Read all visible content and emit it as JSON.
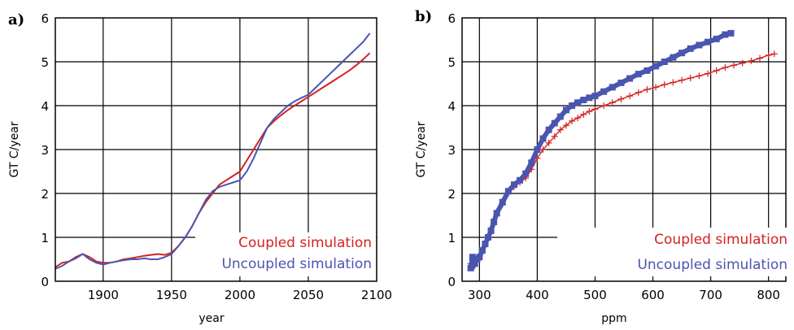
{
  "colors": {
    "coupled": "#d62020",
    "uncoupled": "#4a55b0",
    "axis": "#000000",
    "grid": "#000000"
  },
  "chart_data": [
    {
      "type": "line",
      "panel_label": "a)",
      "xlabel": "year",
      "ylabel": "GT C/year",
      "xlim": [
        1865,
        2100
      ],
      "ylim": [
        0,
        6
      ],
      "xticks": [
        "1900",
        "1950",
        "2000",
        "2050",
        "2100"
      ],
      "yticks": [
        "0",
        "1",
        "2",
        "3",
        "4",
        "5",
        "6"
      ],
      "grid": true,
      "legend_position": "bottom-right",
      "series": [
        {
          "name": "Coupled simulation",
          "color": "#d62020",
          "x": [
            1865,
            1870,
            1875,
            1880,
            1885,
            1890,
            1895,
            1900,
            1905,
            1910,
            1915,
            1920,
            1925,
            1930,
            1935,
            1940,
            1945,
            1950,
            1955,
            1960,
            1965,
            1970,
            1975,
            1980,
            1985,
            1990,
            1995,
            2000,
            2005,
            2010,
            2015,
            2020,
            2025,
            2030,
            2035,
            2040,
            2045,
            2050,
            2055,
            2060,
            2065,
            2070,
            2075,
            2080,
            2085,
            2090,
            2095
          ],
          "y": [
            0.32,
            0.42,
            0.45,
            0.55,
            0.62,
            0.55,
            0.45,
            0.42,
            0.42,
            0.45,
            0.5,
            0.52,
            0.55,
            0.58,
            0.6,
            0.62,
            0.6,
            0.65,
            0.8,
            1.0,
            1.25,
            1.55,
            1.8,
            2.0,
            2.2,
            2.3,
            2.4,
            2.5,
            2.75,
            3.0,
            3.25,
            3.5,
            3.65,
            3.78,
            3.9,
            4.0,
            4.1,
            4.2,
            4.3,
            4.4,
            4.5,
            4.6,
            4.7,
            4.8,
            4.92,
            5.05,
            5.2
          ]
        },
        {
          "name": "Uncoupled simulation",
          "color": "#4a55b0",
          "x": [
            1865,
            1870,
            1875,
            1880,
            1885,
            1890,
            1895,
            1900,
            1905,
            1910,
            1915,
            1920,
            1925,
            1930,
            1935,
            1940,
            1945,
            1950,
            1955,
            1960,
            1965,
            1970,
            1975,
            1980,
            1985,
            1990,
            1995,
            2000,
            2005,
            2010,
            2015,
            2020,
            2025,
            2030,
            2035,
            2040,
            2045,
            2050,
            2055,
            2060,
            2065,
            2070,
            2075,
            2080,
            2085,
            2090,
            2095
          ],
          "y": [
            0.28,
            0.35,
            0.45,
            0.52,
            0.62,
            0.5,
            0.42,
            0.38,
            0.42,
            0.45,
            0.48,
            0.5,
            0.5,
            0.52,
            0.5,
            0.5,
            0.55,
            0.62,
            0.8,
            1.0,
            1.25,
            1.55,
            1.85,
            2.05,
            2.15,
            2.2,
            2.25,
            2.3,
            2.5,
            2.8,
            3.15,
            3.5,
            3.7,
            3.85,
            4.0,
            4.1,
            4.18,
            4.25,
            4.4,
            4.55,
            4.7,
            4.85,
            5.0,
            5.15,
            5.3,
            5.45,
            5.65
          ]
        }
      ]
    },
    {
      "type": "scatter",
      "panel_label": "b)",
      "xlabel": "ppm",
      "ylabel": "GT C/year",
      "xlim": [
        270,
        830
      ],
      "ylim": [
        0,
        6
      ],
      "xticks": [
        "300",
        "400",
        "500",
        "600",
        "700",
        "800"
      ],
      "yticks": [
        "0",
        "1",
        "2",
        "3",
        "4",
        "5",
        "6"
      ],
      "grid": true,
      "legend_position": "bottom-right",
      "series": [
        {
          "name": "Coupled simulation",
          "color": "#d62020",
          "marker": "plus",
          "x": [
            285,
            288,
            292,
            296,
            300,
            305,
            310,
            315,
            320,
            325,
            330,
            340,
            350,
            360,
            370,
            380,
            390,
            400,
            410,
            420,
            430,
            440,
            450,
            460,
            470,
            480,
            490,
            500,
            515,
            530,
            545,
            560,
            575,
            590,
            605,
            620,
            635,
            650,
            665,
            680,
            695,
            710,
            725,
            740,
            755,
            770,
            785,
            800,
            810
          ],
          "y": [
            0.4,
            0.5,
            0.45,
            0.5,
            0.55,
            0.7,
            0.85,
            1.0,
            1.15,
            1.3,
            1.5,
            1.75,
            2.0,
            2.15,
            2.25,
            2.35,
            2.55,
            2.8,
            3.0,
            3.15,
            3.3,
            3.45,
            3.55,
            3.65,
            3.72,
            3.8,
            3.87,
            3.92,
            4.0,
            4.07,
            4.15,
            4.22,
            4.3,
            4.37,
            4.42,
            4.48,
            4.53,
            4.58,
            4.63,
            4.68,
            4.73,
            4.8,
            4.87,
            4.92,
            4.97,
            5.02,
            5.08,
            5.15,
            5.18
          ]
        },
        {
          "name": "Uncoupled simulation",
          "color": "#4a55b0",
          "marker": "square",
          "x": [
            285,
            288,
            292,
            296,
            300,
            305,
            310,
            315,
            320,
            325,
            330,
            340,
            350,
            360,
            370,
            380,
            390,
            400,
            410,
            420,
            430,
            440,
            450,
            460,
            470,
            480,
            490,
            500,
            515,
            530,
            545,
            560,
            575,
            590,
            605,
            620,
            635,
            650,
            665,
            680,
            695,
            710,
            725,
            735
          ],
          "y": [
            0.3,
            0.55,
            0.4,
            0.5,
            0.55,
            0.7,
            0.85,
            1.0,
            1.15,
            1.35,
            1.55,
            1.8,
            2.05,
            2.2,
            2.3,
            2.45,
            2.7,
            3.0,
            3.25,
            3.45,
            3.6,
            3.75,
            3.9,
            4.0,
            4.07,
            4.13,
            4.18,
            4.22,
            4.32,
            4.42,
            4.52,
            4.62,
            4.72,
            4.8,
            4.9,
            5.0,
            5.1,
            5.2,
            5.3,
            5.38,
            5.45,
            5.52,
            5.62,
            5.65
          ]
        }
      ]
    }
  ]
}
